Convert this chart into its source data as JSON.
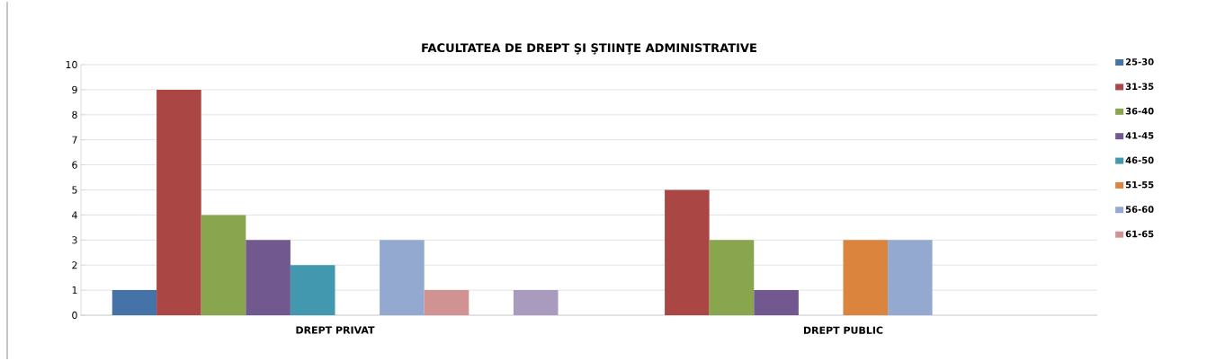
{
  "chart_data": {
    "type": "bar",
    "title": "FACULTATEA DE DREPT ŞI ŞTIINŢE ADMINISTRATIVE",
    "categories": [
      "DREPT PRIVAT",
      "DREPT PUBLIC"
    ],
    "series": [
      {
        "name": "25-30",
        "color": "#4572a7",
        "values": [
          1,
          0
        ]
      },
      {
        "name": "31-35",
        "color": "#aa4643",
        "values": [
          9,
          5
        ]
      },
      {
        "name": "36-40",
        "color": "#89a54e",
        "values": [
          4,
          3
        ]
      },
      {
        "name": "41-45",
        "color": "#71588f",
        "values": [
          3,
          1
        ]
      },
      {
        "name": "46-50",
        "color": "#4198af",
        "values": [
          2,
          0
        ]
      },
      {
        "name": "51-55",
        "color": "#db843d",
        "values": [
          0,
          3
        ]
      },
      {
        "name": "56-60",
        "color": "#93a9cf",
        "values": [
          3,
          3
        ]
      },
      {
        "name": "61-65",
        "color": "#d19392",
        "values": [
          1,
          0
        ]
      },
      {
        "color": "#b9cd96",
        "values": [
          0,
          0
        ]
      },
      {
        "color": "#a99bbd",
        "values": [
          1,
          0
        ]
      }
    ],
    "ylim": [
      0,
      10
    ],
    "yticks": [
      0,
      1,
      2,
      3,
      4,
      5,
      6,
      7,
      8,
      9,
      10
    ],
    "grid": "y",
    "legend": "right"
  }
}
